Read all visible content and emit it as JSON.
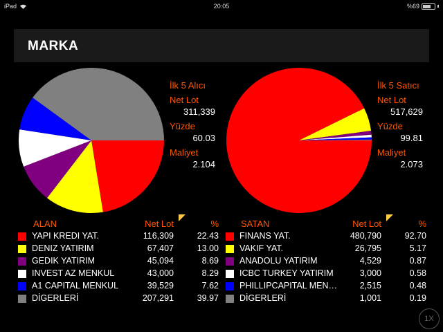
{
  "status_bar": {
    "device": "iPad",
    "time": "20:05",
    "battery": "%69",
    "battery_level": 0.69
  },
  "header": {
    "title": "MARKA"
  },
  "buyers": {
    "stats": {
      "title": "İlk 5 Alıcı",
      "net_lot_label": "Net Lot",
      "net_lot": "311,339",
      "pct_label": "Yüzde",
      "pct": "60.03",
      "cost_label": "Maliyet",
      "cost": "2.104"
    },
    "headers": {
      "name": "ALAN",
      "lot": "Net Lot",
      "pct": "%"
    },
    "rows": [
      {
        "name": "YAPI KREDI YAT.",
        "lot": "116,309",
        "pct": "22.43",
        "color": "#ff0000",
        "value": 22.43
      },
      {
        "name": "DENIZ YATIRIM",
        "lot": "67,407",
        "pct": "13.00",
        "color": "#ffff00",
        "value": 13.0
      },
      {
        "name": "GEDIK YATIRIM",
        "lot": "45,094",
        "pct": "8.69",
        "color": "#800080",
        "value": 8.69
      },
      {
        "name": "INVEST AZ MENKUL",
        "lot": "43,000",
        "pct": "8.29",
        "color": "#ffffff",
        "value": 8.29
      },
      {
        "name": "A1 CAPITAL MENKUL",
        "lot": "39,529",
        "pct": "7.62",
        "color": "#0000ff",
        "value": 7.62
      },
      {
        "name": "DİGERLERİ",
        "lot": "207,291",
        "pct": "39.97",
        "color": "#808080",
        "value": 39.97
      }
    ]
  },
  "sellers": {
    "stats": {
      "title": "İlk 5 Satıcı",
      "net_lot_label": "Net Lot",
      "net_lot": "517,629",
      "pct_label": "Yüzde",
      "pct": "99.81",
      "cost_label": "Maliyet",
      "cost": "2.073"
    },
    "headers": {
      "name": "SATAN",
      "lot": "Net Lot",
      "pct": "%"
    },
    "rows": [
      {
        "name": "FINANS YAT.",
        "lot": "480,790",
        "pct": "92.70",
        "color": "#ff0000",
        "value": 92.7
      },
      {
        "name": "VAKIF YAT.",
        "lot": "26,795",
        "pct": "5.17",
        "color": "#ffff00",
        "value": 5.17
      },
      {
        "name": "ANADOLU YATIRIM",
        "lot": "4,529",
        "pct": "0.87",
        "color": "#800080",
        "value": 0.87
      },
      {
        "name": "ICBC TURKEY YATIRIM",
        "lot": "3,000",
        "pct": "0.58",
        "color": "#ffffff",
        "value": 0.58
      },
      {
        "name": "PHILLIPCAPITAL MENKUL",
        "lot": "2,515",
        "pct": "0.48",
        "color": "#0000ff",
        "value": 0.48
      },
      {
        "name": "DİGERLERİ",
        "lot": "1,001",
        "pct": "0.19",
        "color": "#808080",
        "value": 0.19
      }
    ]
  },
  "speed_button": {
    "label": "1X"
  }
}
